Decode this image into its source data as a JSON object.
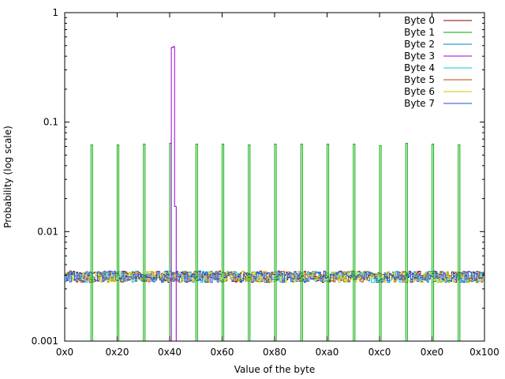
{
  "chart_data": {
    "type": "line",
    "xlabel": "Value of the byte",
    "ylabel": "Probability (log scale)",
    "xlim": [
      0,
      256
    ],
    "ylim": [
      0.001,
      1
    ],
    "yscale": "log",
    "step": true,
    "grid": false,
    "legend_position": "top-right",
    "x_ticks": [
      {
        "value": 0,
        "label": "0x0"
      },
      {
        "value": 32,
        "label": "0x20"
      },
      {
        "value": 64,
        "label": "0x40"
      },
      {
        "value": 96,
        "label": "0x60"
      },
      {
        "value": 128,
        "label": "0x80"
      },
      {
        "value": 160,
        "label": "0xa0"
      },
      {
        "value": 192,
        "label": "0xc0"
      },
      {
        "value": 224,
        "label": "0xe0"
      },
      {
        "value": 256,
        "label": "0x100"
      }
    ],
    "y_ticks": [
      {
        "value": 0.001,
        "label": "0.001"
      },
      {
        "value": 0.01,
        "label": "0.01"
      },
      {
        "value": 0.1,
        "label": "0.1"
      },
      {
        "value": 1,
        "label": "1"
      }
    ],
    "series": [
      {
        "name": "Byte 0",
        "color": "#8b0000",
        "baseline": 0.0039,
        "spikes": []
      },
      {
        "name": "Byte 1",
        "color": "#00aa00",
        "baseline": 0.0004,
        "spikes": [
          {
            "x": 16,
            "y": 0.062
          },
          {
            "x": 32,
            "y": 0.062
          },
          {
            "x": 48,
            "y": 0.063
          },
          {
            "x": 64,
            "y": 0.064
          },
          {
            "x": 80,
            "y": 0.063
          },
          {
            "x": 96,
            "y": 0.063
          },
          {
            "x": 112,
            "y": 0.062
          },
          {
            "x": 128,
            "y": 0.063
          },
          {
            "x": 144,
            "y": 0.063
          },
          {
            "x": 160,
            "y": 0.063
          },
          {
            "x": 176,
            "y": 0.063
          },
          {
            "x": 192,
            "y": 0.061
          },
          {
            "x": 208,
            "y": 0.064
          },
          {
            "x": 224,
            "y": 0.063
          },
          {
            "x": 240,
            "y": 0.062
          }
        ]
      },
      {
        "name": "Byte 2",
        "color": "#0080c0",
        "baseline": 0.0039,
        "spikes": []
      },
      {
        "name": "Byte 3",
        "color": "#9400d3",
        "baseline": 0.0004,
        "spikes": [
          {
            "x": 65,
            "y": 0.48
          },
          {
            "x": 66,
            "y": 0.49
          },
          {
            "x": 67,
            "y": 0.017
          }
        ]
      },
      {
        "name": "Byte 4",
        "color": "#00d0d0",
        "baseline": 0.0039,
        "spikes": []
      },
      {
        "name": "Byte 5",
        "color": "#c04000",
        "baseline": 0.0039,
        "spikes": []
      },
      {
        "name": "Byte 6",
        "color": "#c8c800",
        "baseline": 0.0039,
        "spikes": []
      },
      {
        "name": "Byte 7",
        "color": "#2050d0",
        "baseline": 0.0039,
        "spikes": []
      }
    ]
  }
}
